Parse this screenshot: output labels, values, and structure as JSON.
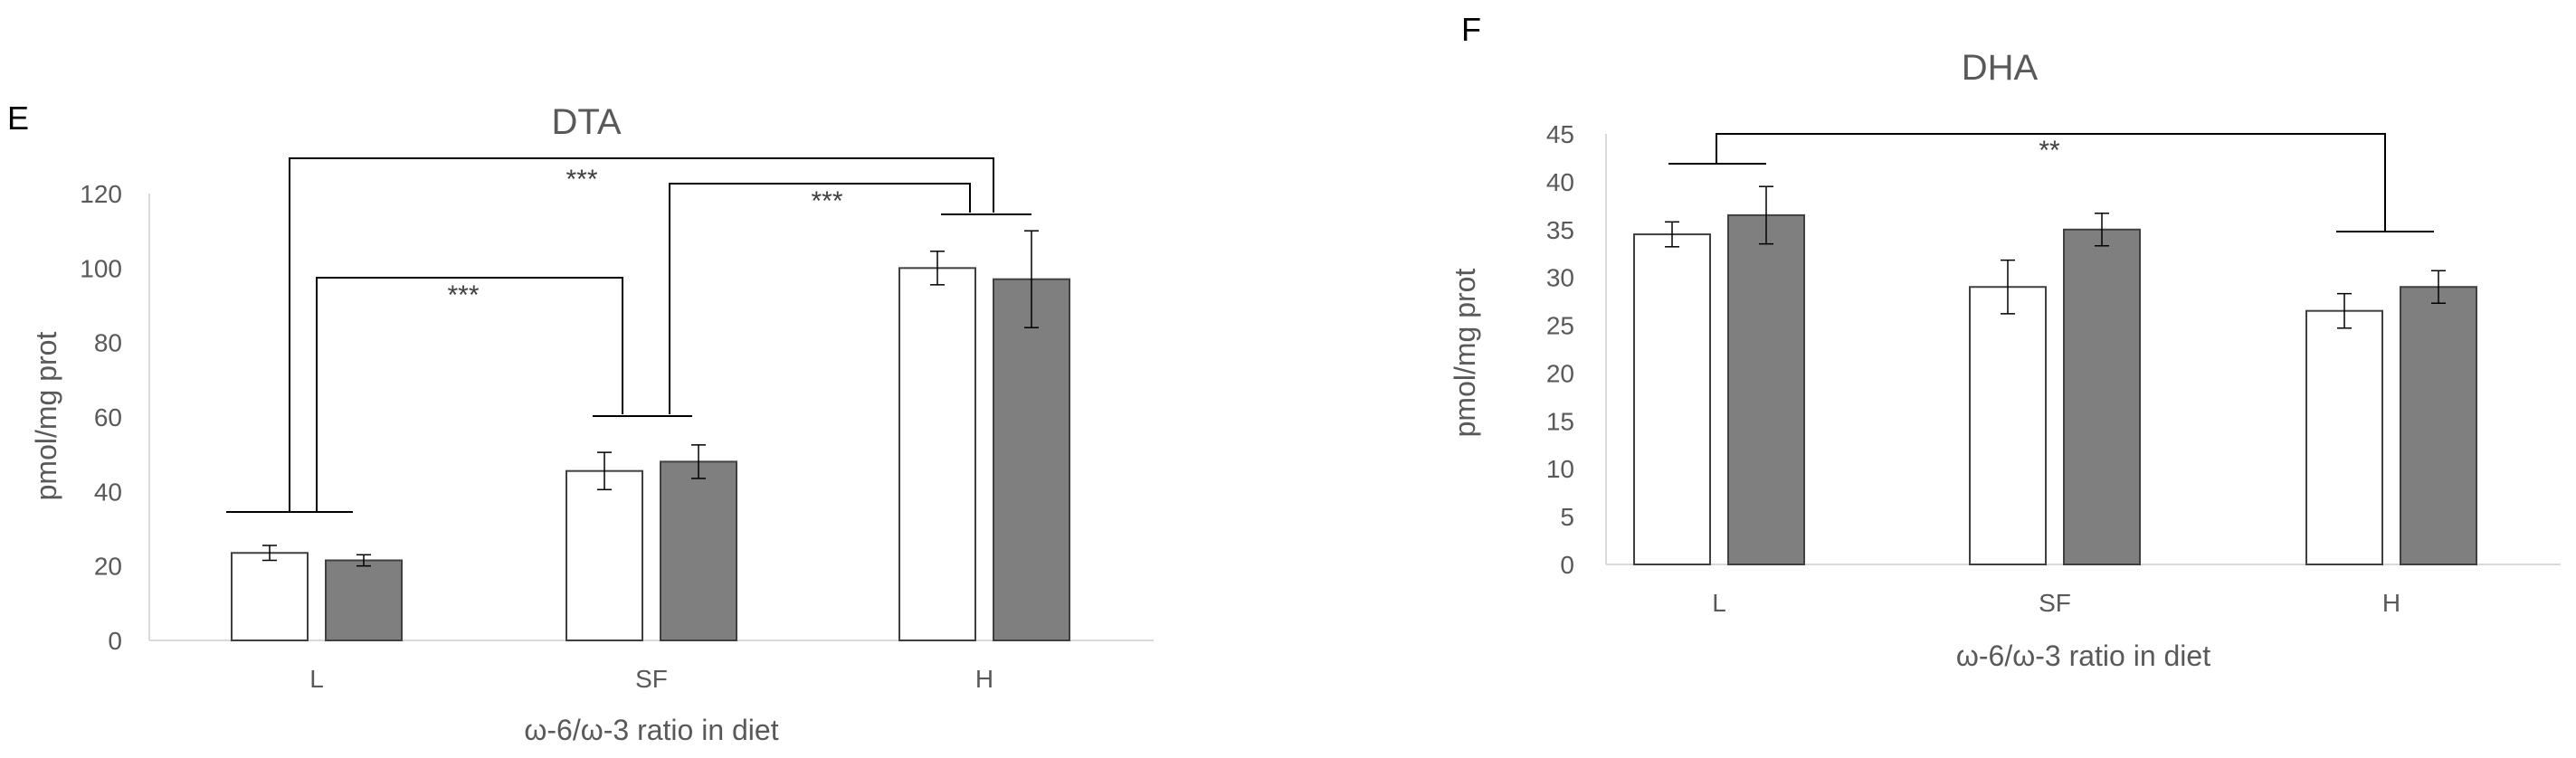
{
  "panels": {
    "e_letter": "E",
    "f_letter": "F"
  },
  "colors": {
    "open_bar": "#ffffff",
    "filled_bar": "#7f7f7f",
    "stroke": "#404040",
    "axis": "#d9d9d9"
  },
  "chart_data": [
    {
      "type": "bar",
      "title": "DTA",
      "xlabel": "ω-6/ω-3 ratio  in diet",
      "ylabel": "pmol/mg prot",
      "categories": [
        "L",
        "SF",
        "H"
      ],
      "ylim": [
        0,
        120
      ],
      "yticks": [
        0,
        20,
        40,
        60,
        80,
        100,
        120
      ],
      "series": [
        {
          "values": [
            23.5,
            45.5,
            100
          ],
          "errors": [
            2,
            5,
            4.5
          ],
          "color": "#ffffff"
        },
        {
          "values": [
            21.5,
            48,
            97
          ],
          "errors": [
            1.5,
            4.5,
            13
          ],
          "color": "#7f7f7f"
        }
      ],
      "annotations": [
        "***",
        "***",
        "***"
      ]
    },
    {
      "type": "bar",
      "title": "DHA",
      "xlabel": "ω-6/ω-3 ratio  in diet",
      "ylabel": "pmol/mg prot",
      "categories": [
        "L",
        "SF",
        "H"
      ],
      "ylim": [
        0,
        45
      ],
      "yticks": [
        0,
        5,
        10,
        15,
        20,
        25,
        30,
        35,
        40,
        45
      ],
      "series": [
        {
          "values": [
            34.5,
            29,
            26.5
          ],
          "errors": [
            1.3,
            2.8,
            1.8
          ],
          "color": "#ffffff"
        },
        {
          "values": [
            36.5,
            35,
            29
          ],
          "errors": [
            3,
            1.7,
            1.7
          ],
          "color": "#7f7f7f"
        }
      ],
      "annotations": [
        "**"
      ]
    }
  ]
}
